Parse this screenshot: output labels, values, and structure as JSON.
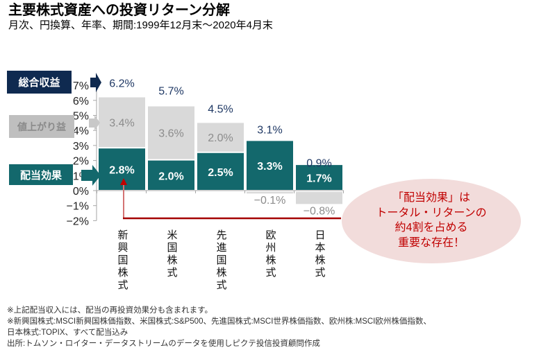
{
  "header": {
    "title": "主要株式資産への投資リターン分解",
    "subtitle": "月次、円換算、年率、期間:1999年12月末～2020年4月末"
  },
  "legend_labels": {
    "total": "総合収益",
    "price": "値上がり益",
    "dividend": "配当効果"
  },
  "callout": {
    "lines": [
      "「配当効果」は",
      "トータル・リターンの",
      "約4割を占める",
      "重要な存在！"
    ]
  },
  "footnotes": [
    "※上記配当収入には、配当の再投資効果分も含まれます。",
    "※新興国株式:MSCI新興国株価指数、米国株式:S&P500、先進国株式:MSCI世界株価指数、欧州株:MSCI欧州株価指数、",
    "日本株式:TOPIX、すべて配当込み",
    "出所:トムソン・ロイター・データストリームのデータを使用しピクテ投信投資顧問作成"
  ],
  "colors": {
    "dividend": "#13686c",
    "price": "#d9d9d9",
    "price_label": "#8c8c8c",
    "total_label": "#1f3864",
    "total_box": "#0f2a50",
    "price_box": "#bfbfbf",
    "axis": "#a6a6a6",
    "callout_fill": "#f2dcdb",
    "callout_text": "#c00000",
    "pointer": "#a50000"
  },
  "chart_data": {
    "type": "bar",
    "subtype": "stacked",
    "title": "主要株式資産への投資リターン分解",
    "subtitle": "月次、円換算、年率、期間:1999年12月末～2020年4月末",
    "xlabel": "",
    "ylabel": "",
    "categories": [
      "新興国株式",
      "米国株式",
      "先進国株式",
      "欧州株式",
      "日本株式"
    ],
    "series": [
      {
        "name": "配当効果",
        "key": "dividend",
        "values": [
          2.8,
          2.0,
          2.5,
          3.3,
          1.7
        ]
      },
      {
        "name": "値上がり益",
        "key": "price",
        "values": [
          3.4,
          3.6,
          2.0,
          -0.1,
          -0.8
        ]
      },
      {
        "name": "総合収益",
        "key": "total",
        "values": [
          6.2,
          5.7,
          4.5,
          3.1,
          0.9
        ]
      }
    ],
    "ylim": [
      -2,
      7
    ],
    "yticks": [
      7,
      6,
      5,
      4,
      3,
      2,
      1,
      0,
      -1,
      -2
    ],
    "ytick_labels": [
      "7%",
      "6%",
      "5%",
      "4%",
      "3%",
      "2%",
      "1%",
      "0%",
      "−1%",
      "−2%"
    ],
    "value_suffix": "%",
    "grid": false,
    "legend": "left"
  }
}
